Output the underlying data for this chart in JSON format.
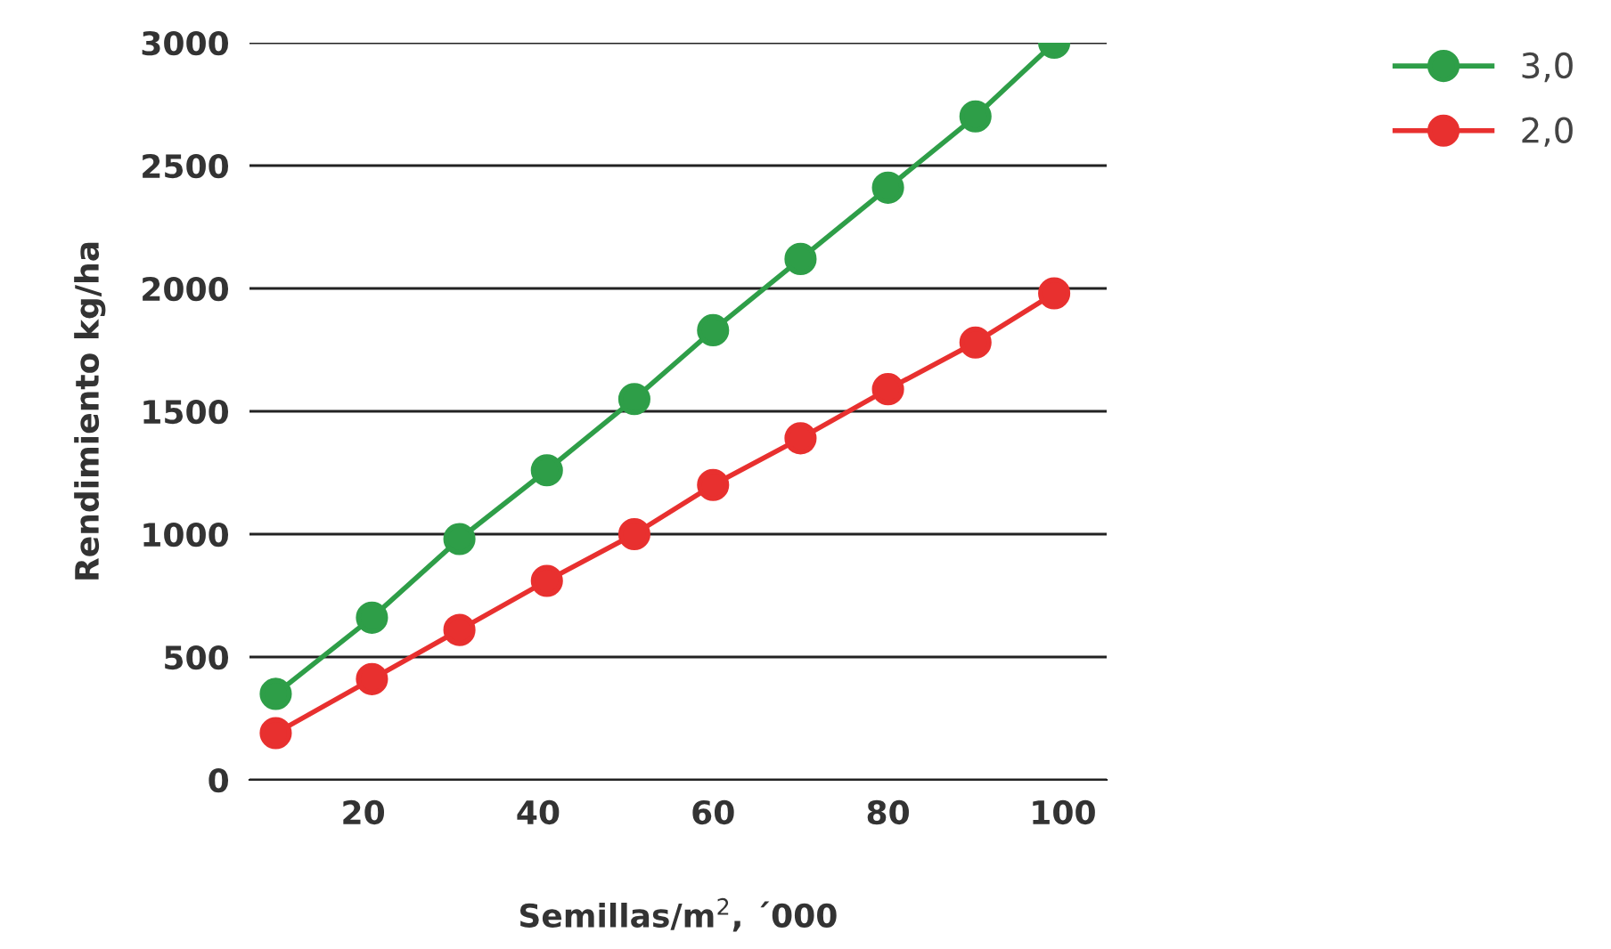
{
  "chart_data": {
    "type": "line",
    "xlabel": "Semillas/m$^{2}$, ´000",
    "ylabel": "Rendimiento kg/ha",
    "x": [
      10,
      21,
      31,
      41,
      51,
      60,
      70,
      80,
      90,
      99
    ],
    "series": [
      {
        "name": "3,0",
        "color": "#2e9e48",
        "values": [
          350,
          660,
          980,
          1260,
          1550,
          1830,
          2120,
          2410,
          2700,
          3000
        ]
      },
      {
        "name": "2,0",
        "color": "#e8302f",
        "values": [
          190,
          410,
          610,
          810,
          1000,
          1200,
          1390,
          1590,
          1780,
          1980
        ]
      }
    ],
    "xlim": [
      7,
      105
    ],
    "xticks": [
      20,
      40,
      60,
      80,
      100
    ],
    "ylim": [
      0,
      3000
    ],
    "yticks": [
      0,
      500,
      1000,
      1500,
      2000,
      2500,
      3000
    ],
    "grid": "y",
    "legend": "top right",
    "marker": "circle",
    "line_style": "solid"
  }
}
